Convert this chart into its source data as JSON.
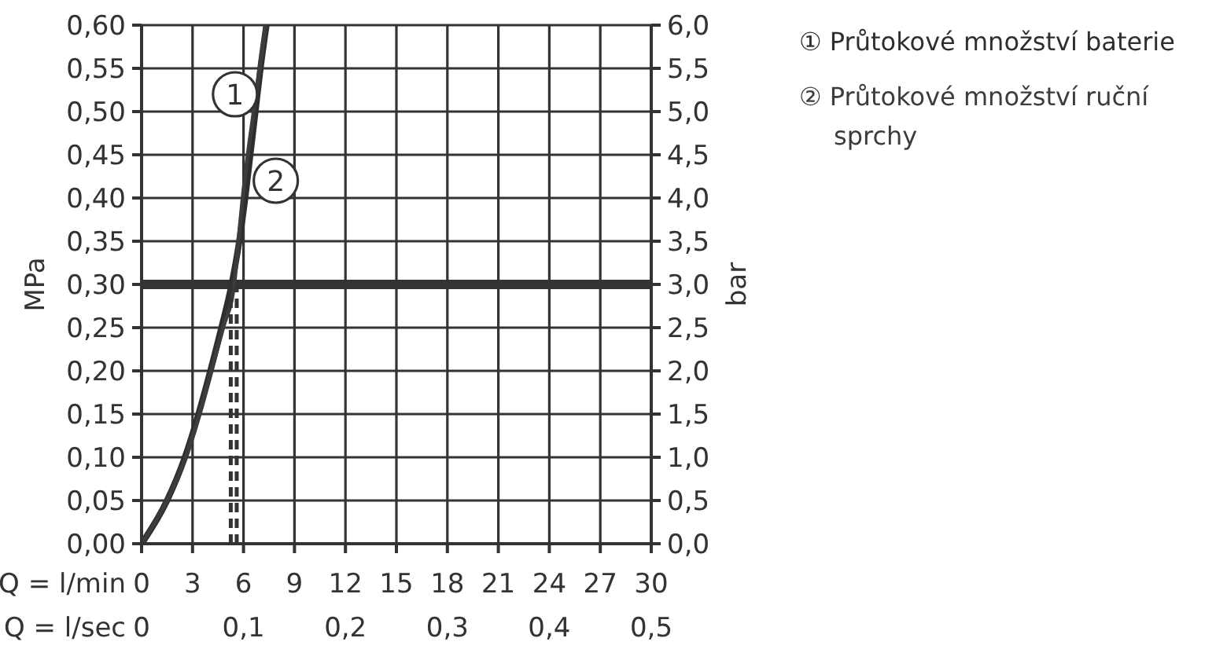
{
  "chart_data": {
    "type": "line",
    "xlabel": "Q = l/min",
    "x2label": "Q = l/sec",
    "ylabel": "MPa",
    "y2label": "bar",
    "xlim": [
      0,
      30
    ],
    "xticks": [
      0,
      3,
      6,
      9,
      12,
      15,
      18,
      21,
      24,
      27,
      30
    ],
    "x2lim": [
      0,
      0.5
    ],
    "x2ticks": [
      0,
      {
        "value": 0.1,
        "label": "0,1"
      },
      {
        "value": 0.2,
        "label": "0,2"
      },
      {
        "value": 0.3,
        "label": "0,3"
      },
      {
        "value": 0.4,
        "label": "0,4"
      },
      {
        "value": 0.5,
        "label": "0,5"
      }
    ],
    "ylim": [
      0,
      0.6
    ],
    "yticks": [
      {
        "value": 0,
        "label": "0,00"
      },
      {
        "value": 0.05,
        "label": "0,05"
      },
      {
        "value": 0.1,
        "label": "0,10"
      },
      {
        "value": 0.15,
        "label": "0,15"
      },
      {
        "value": 0.2,
        "label": "0,20"
      },
      {
        "value": 0.25,
        "label": "0,25"
      },
      {
        "value": 0.3,
        "label": "0,30"
      },
      {
        "value": 0.35,
        "label": "0,35"
      },
      {
        "value": 0.4,
        "label": "0,40"
      },
      {
        "value": 0.45,
        "label": "0,45"
      },
      {
        "value": 0.5,
        "label": "0,50"
      },
      {
        "value": 0.55,
        "label": "0,55"
      },
      {
        "value": 0.6,
        "label": "0,60"
      }
    ],
    "y2lim": [
      0,
      6
    ],
    "y2ticks": [
      {
        "value": 0,
        "label": "0,0"
      },
      {
        "value": 0.5,
        "label": "0,5"
      },
      {
        "value": 1,
        "label": "1,0"
      },
      {
        "value": 1.5,
        "label": "1,5"
      },
      {
        "value": 2,
        "label": "2,0"
      },
      {
        "value": 2.5,
        "label": "2,5"
      },
      {
        "value": 3,
        "label": "3,0"
      },
      {
        "value": 3.5,
        "label": "3,5"
      },
      {
        "value": 4,
        "label": "4,0"
      },
      {
        "value": 4.5,
        "label": "4,5"
      },
      {
        "value": 5,
        "label": "5,0"
      },
      {
        "value": 5.5,
        "label": "5,5"
      },
      {
        "value": 6,
        "label": "6,0"
      }
    ],
    "grid": true,
    "legend": "top right",
    "marker": "none",
    "ref_lines": [
      {
        "axis": "y",
        "value": 0.3,
        "color": "#333333"
      }
    ],
    "annotations": [
      {
        "text": "1",
        "x": 5.5,
        "y": 0.52
      },
      {
        "text": "2",
        "x": 7.9,
        "y": 0.42
      }
    ],
    "series": [
      {
        "name": "① Průtokové množství baterie",
        "color": "#2e2e2e",
        "x": [
          0,
          1.5,
          2.55,
          3.35,
          4.05,
          4.7,
          5.3,
          5.75,
          6.1,
          6.4,
          6.7,
          7.0,
          7.35
        ],
        "values": [
          0,
          0.05,
          0.1,
          0.15,
          0.2,
          0.25,
          0.3,
          0.35,
          0.4,
          0.45,
          0.5,
          0.55,
          0.6
        ]
      },
      {
        "name": "② Průtokové množství ruční sprchy",
        "color": "#3c3c3c",
        "x": [
          0,
          1.5,
          2.6,
          3.4,
          4.1,
          4.8,
          5.45,
          5.7,
          5.95,
          6.25,
          6.6,
          6.95,
          7.3
        ],
        "values": [
          0,
          0.05,
          0.1,
          0.15,
          0.2,
          0.25,
          0.3,
          0.35,
          0.4,
          0.45,
          0.5,
          0.55,
          0.6
        ]
      },
      {
        "type": "line",
        "color": "#333333",
        "line_style": "dashed",
        "x": [
          5.25,
          5.25
        ],
        "values": [
          0,
          0.3
        ]
      },
      {
        "type": "line",
        "color": "#333333",
        "line_style": "dashed",
        "x": [
          5.6,
          5.6
        ],
        "values": [
          0,
          0.3
        ]
      }
    ]
  }
}
